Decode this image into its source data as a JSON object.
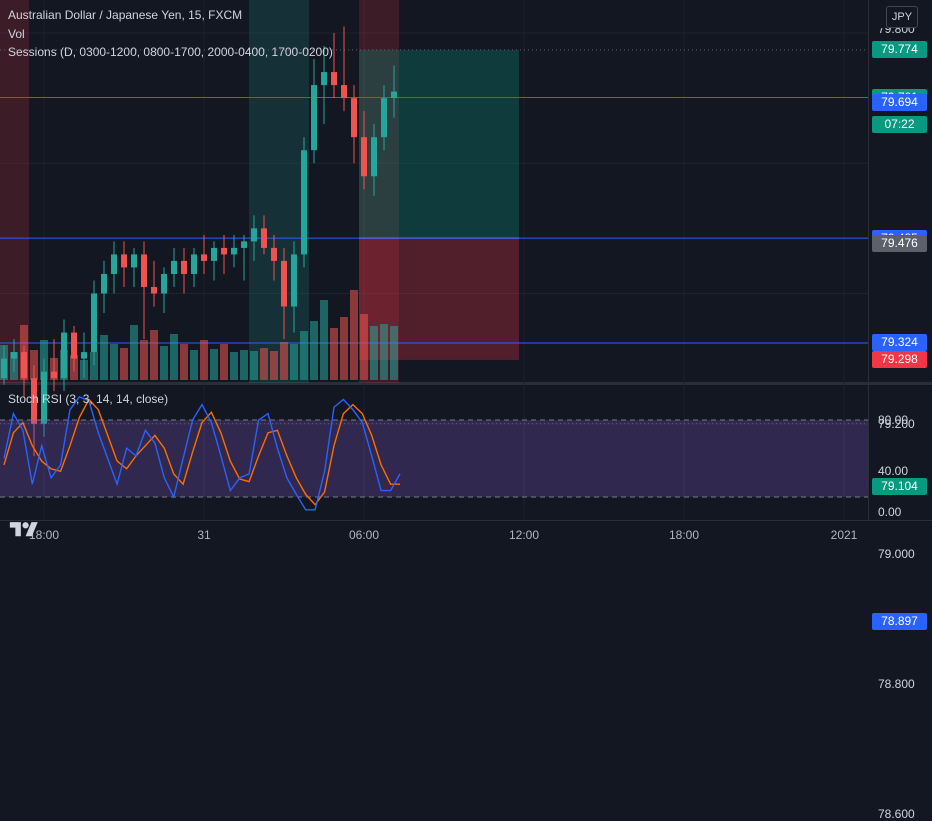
{
  "header": {
    "symbol_title": "Australian Dollar / Japanese Yen, 15, FXCM",
    "vol_label": "Vol",
    "sessions_label": "Sessions (D, 0300-1200, 0800-1700, 2000-0400, 1700-0200)",
    "currency_button": "JPY"
  },
  "price_scale": {
    "top_partial": "79.800",
    "labels": [
      {
        "text": "79.200",
        "value": 79.2
      },
      {
        "text": "79.000",
        "value": 79.0
      },
      {
        "text": "78.800",
        "value": 78.8
      },
      {
        "text": "78.600",
        "value": 78.6
      }
    ],
    "tags": [
      {
        "text": "79.774",
        "value": 79.774,
        "color": "#089981"
      },
      {
        "text": "79.701",
        "value": 79.701,
        "color": "#089981"
      },
      {
        "text": "07:22",
        "value": 79.66,
        "color": "#089981"
      },
      {
        "text": "79.694",
        "value": 79.694,
        "color": "#2962ff"
      },
      {
        "text": "79.485",
        "value": 79.485,
        "color": "#2962ff"
      },
      {
        "text": "79.476",
        "value": 79.476,
        "color": "#5d606b"
      },
      {
        "text": "79.324",
        "value": 79.324,
        "color": "#2962ff"
      },
      {
        "text": "79.298",
        "value": 79.298,
        "color": "#f23645"
      },
      {
        "text": "79.104",
        "value": 79.104,
        "color": "#089981"
      },
      {
        "text": "78.897",
        "value": 78.897,
        "color": "#2962ff"
      }
    ]
  },
  "horizontal_lines": [
    79.701,
    79.485,
    79.324,
    78.897
  ],
  "dotted_lines": [
    79.774,
    79.2
  ],
  "stoch_rsi": {
    "label": "Stoch RSI (3, 3, 14, 14, close)",
    "scale_labels": [
      "80.00",
      "40.00",
      "0.00"
    ],
    "upper_band": 80,
    "lower_band": 20,
    "k_color": "#2962ff",
    "d_color": "#ff6d00",
    "band_color": "#7e57c2",
    "k": [
      50,
      85,
      72,
      30,
      60,
      35,
      45,
      88,
      98,
      95,
      70,
      50,
      30,
      58,
      52,
      72,
      62,
      35,
      20,
      50,
      80,
      92,
      78,
      52,
      25,
      35,
      38,
      80,
      85,
      58,
      35,
      22,
      10,
      10,
      40,
      90,
      96,
      88,
      78,
      52,
      25,
      25,
      38
    ],
    "d": [
      45,
      70,
      78,
      60,
      48,
      42,
      40,
      60,
      82,
      96,
      88,
      68,
      48,
      42,
      52,
      60,
      68,
      58,
      38,
      30,
      55,
      78,
      86,
      70,
      48,
      34,
      32,
      52,
      70,
      72,
      52,
      35,
      22,
      14,
      24,
      60,
      85,
      92,
      85,
      68,
      45,
      30,
      30
    ]
  },
  "time_axis": {
    "labels": [
      {
        "text": "18:00",
        "index": 4
      },
      {
        "text": "31",
        "index": 20
      },
      {
        "text": "06:00",
        "index": 36
      },
      {
        "text": "12:00",
        "index": 52
      },
      {
        "text": "18:00",
        "index": 68
      },
      {
        "text": "2021",
        "index": 84
      }
    ]
  },
  "chart_data": {
    "type": "candlestick",
    "up_color": "#26a69a",
    "down_color": "#ef5350",
    "ohlc": [
      [
        79.27,
        79.32,
        79.26,
        79.3
      ],
      [
        79.3,
        79.33,
        79.28,
        79.31
      ],
      [
        79.31,
        79.32,
        79.24,
        79.27
      ],
      [
        79.27,
        79.29,
        79.15,
        79.2
      ],
      [
        79.2,
        79.3,
        79.18,
        79.28
      ],
      [
        79.28,
        79.33,
        79.25,
        79.27
      ],
      [
        79.27,
        79.36,
        79.25,
        79.34
      ],
      [
        79.34,
        79.35,
        79.28,
        79.3
      ],
      [
        79.3,
        79.34,
        79.27,
        79.31
      ],
      [
        79.31,
        79.42,
        79.29,
        79.4
      ],
      [
        79.4,
        79.45,
        79.37,
        79.43
      ],
      [
        79.43,
        79.48,
        79.4,
        79.46
      ],
      [
        79.46,
        79.48,
        79.41,
        79.44
      ],
      [
        79.44,
        79.47,
        79.41,
        79.46
      ],
      [
        79.46,
        79.48,
        79.33,
        79.41
      ],
      [
        79.41,
        79.45,
        79.38,
        79.4
      ],
      [
        79.4,
        79.44,
        79.37,
        79.43
      ],
      [
        79.43,
        79.47,
        79.41,
        79.45
      ],
      [
        79.45,
        79.47,
        79.4,
        79.43
      ],
      [
        79.43,
        79.47,
        79.41,
        79.46
      ],
      [
        79.46,
        79.49,
        79.43,
        79.45
      ],
      [
        79.45,
        79.48,
        79.42,
        79.47
      ],
      [
        79.47,
        79.49,
        79.43,
        79.46
      ],
      [
        79.46,
        79.49,
        79.44,
        79.47
      ],
      [
        79.47,
        79.49,
        79.42,
        79.48
      ],
      [
        79.48,
        79.52,
        79.45,
        79.5
      ],
      [
        79.5,
        79.52,
        79.46,
        79.47
      ],
      [
        79.47,
        79.49,
        79.42,
        79.45
      ],
      [
        79.45,
        79.47,
        79.33,
        79.38
      ],
      [
        79.38,
        79.48,
        79.34,
        79.46
      ],
      [
        79.46,
        79.64,
        79.44,
        79.62
      ],
      [
        79.62,
        79.76,
        79.6,
        79.72
      ],
      [
        79.72,
        79.78,
        79.66,
        79.74
      ],
      [
        79.74,
        79.8,
        79.7,
        79.72
      ],
      [
        79.72,
        79.81,
        79.68,
        79.7
      ],
      [
        79.7,
        79.72,
        79.6,
        79.64
      ],
      [
        79.64,
        79.68,
        79.56,
        79.58
      ],
      [
        79.58,
        79.66,
        79.55,
        79.64
      ],
      [
        79.64,
        79.72,
        79.62,
        79.7
      ],
      [
        79.7,
        79.75,
        79.67,
        79.71
      ]
    ],
    "volume": [
      0.35,
      0.28,
      0.55,
      0.3,
      0.4,
      0.22,
      0.3,
      0.25,
      0.2,
      0.28,
      0.45,
      0.36,
      0.32,
      0.55,
      0.4,
      0.5,
      0.34,
      0.46,
      0.36,
      0.3,
      0.4,
      0.31,
      0.36,
      0.28,
      0.3,
      0.29,
      0.32,
      0.29,
      0.38,
      0.36,
      0.49,
      0.59,
      0.8,
      0.52,
      0.63,
      0.9,
      0.66,
      0.54,
      0.56,
      0.54
    ],
    "session_zones": [
      {
        "from": 0,
        "to": 2,
        "color": "rgba(242,54,69,0.18)"
      },
      {
        "from": 25,
        "to": 30,
        "color": "rgba(38,166,154,0.18)"
      },
      {
        "from": 36,
        "to": 39,
        "color": "rgba(242,54,69,0.18)"
      }
    ],
    "position": {
      "entry": 79.485,
      "target": 79.774,
      "stop": 79.298,
      "from_index": 36,
      "to_index": 52,
      "target_color": "rgba(8,153,129,0.28)",
      "stop_color": "rgba(242,54,69,0.28)"
    }
  }
}
